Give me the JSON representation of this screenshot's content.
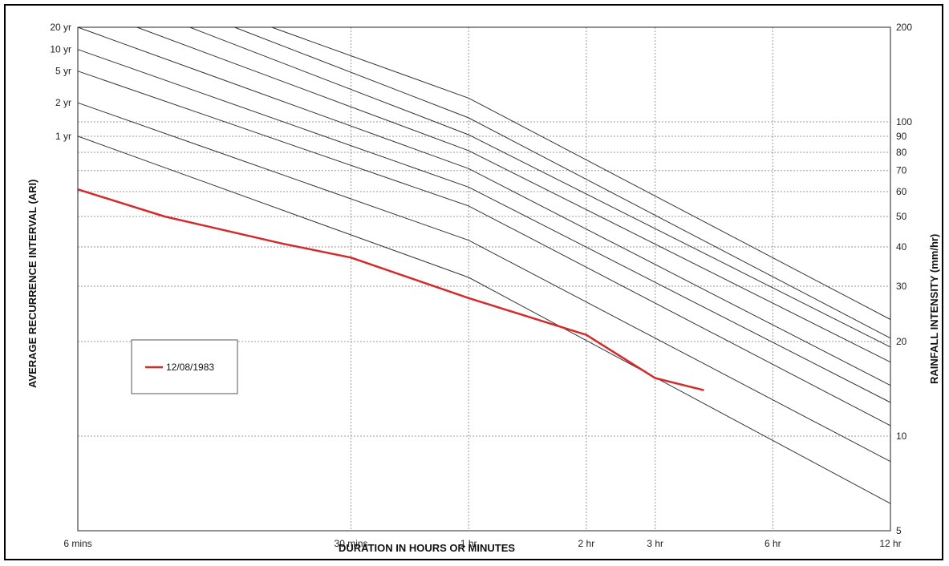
{
  "chart_data": {
    "type": "line",
    "xlabel": "DURATION IN HOURS OR MINUTES",
    "ylabel_left": "AVERAGE RECURRENCE INTERVAL (ARI)",
    "ylabel_right": "RAINFALL INTENSITY (mm/hr)",
    "x_scale": "log",
    "y_scale": "log",
    "xlim_minutes": [
      6,
      720
    ],
    "ylim": [
      5,
      200
    ],
    "grid": true,
    "legend_position": "center-left",
    "x_ticks": [
      {
        "minutes": 6,
        "label": "6 mins"
      },
      {
        "minutes": 30,
        "label": "30 mins"
      },
      {
        "minutes": 60,
        "label": "1 hr"
      },
      {
        "minutes": 120,
        "label": "2 hr"
      },
      {
        "minutes": 180,
        "label": "3 hr"
      },
      {
        "minutes": 360,
        "label": "6 hr"
      },
      {
        "minutes": 720,
        "label": "12 hr"
      }
    ],
    "y_ticks_right": [
      {
        "value": 200,
        "label": "200"
      },
      {
        "value": 100,
        "label": "100"
      },
      {
        "value": 90,
        "label": "90"
      },
      {
        "value": 80,
        "label": "80"
      },
      {
        "value": 70,
        "label": "70"
      },
      {
        "value": 60,
        "label": "60"
      },
      {
        "value": 50,
        "label": "50"
      },
      {
        "value": 40,
        "label": "40"
      },
      {
        "value": 30,
        "label": "30"
      },
      {
        "value": 20,
        "label": "20"
      },
      {
        "value": 10,
        "label": "10"
      },
      {
        "value": 5,
        "label": "5"
      }
    ],
    "ari_labels": [
      {
        "label": "20 yr",
        "value": 200
      },
      {
        "label": "10 yr",
        "value": 170
      },
      {
        "label": "5 yr",
        "value": 145
      },
      {
        "label": "2 yr",
        "value": 115
      },
      {
        "label": "1 yr",
        "value": 90
      }
    ],
    "ifd_curves": [
      {
        "x_minutes": [
          6,
          60,
          720
        ],
        "values": [
          90,
          32,
          6.1
        ]
      },
      {
        "x_minutes": [
          6,
          60,
          720
        ],
        "values": [
          115,
          42,
          8.3
        ]
      },
      {
        "x_minutes": [
          6,
          60,
          720
        ],
        "values": [
          145,
          54,
          10.8
        ]
      },
      {
        "x_minutes": [
          6,
          60,
          720
        ],
        "values": [
          170,
          62,
          12.8
        ]
      },
      {
        "x_minutes": [
          6,
          60,
          720
        ],
        "values": [
          200,
          71,
          14.5
        ]
      },
      {
        "x_minutes": [
          8.5,
          60,
          720
        ],
        "values": [
          200,
          81,
          17.2
        ]
      },
      {
        "x_minutes": [
          11.6,
          60,
          720
        ],
        "values": [
          200,
          91,
          19.2
        ]
      },
      {
        "x_minutes": [
          15.1,
          60,
          720
        ],
        "values": [
          200,
          103,
          20.5
        ]
      },
      {
        "x_minutes": [
          18.8,
          60,
          720
        ],
        "values": [
          200,
          119,
          23.5
        ]
      }
    ],
    "series": [
      {
        "name": "12/08/1983",
        "color": "#d42a2a",
        "x_minutes": [
          6,
          10,
          20,
          30,
          60,
          120,
          180,
          240
        ],
        "values": [
          61,
          50,
          41,
          37,
          27.5,
          21,
          15.3,
          14
        ]
      }
    ]
  }
}
